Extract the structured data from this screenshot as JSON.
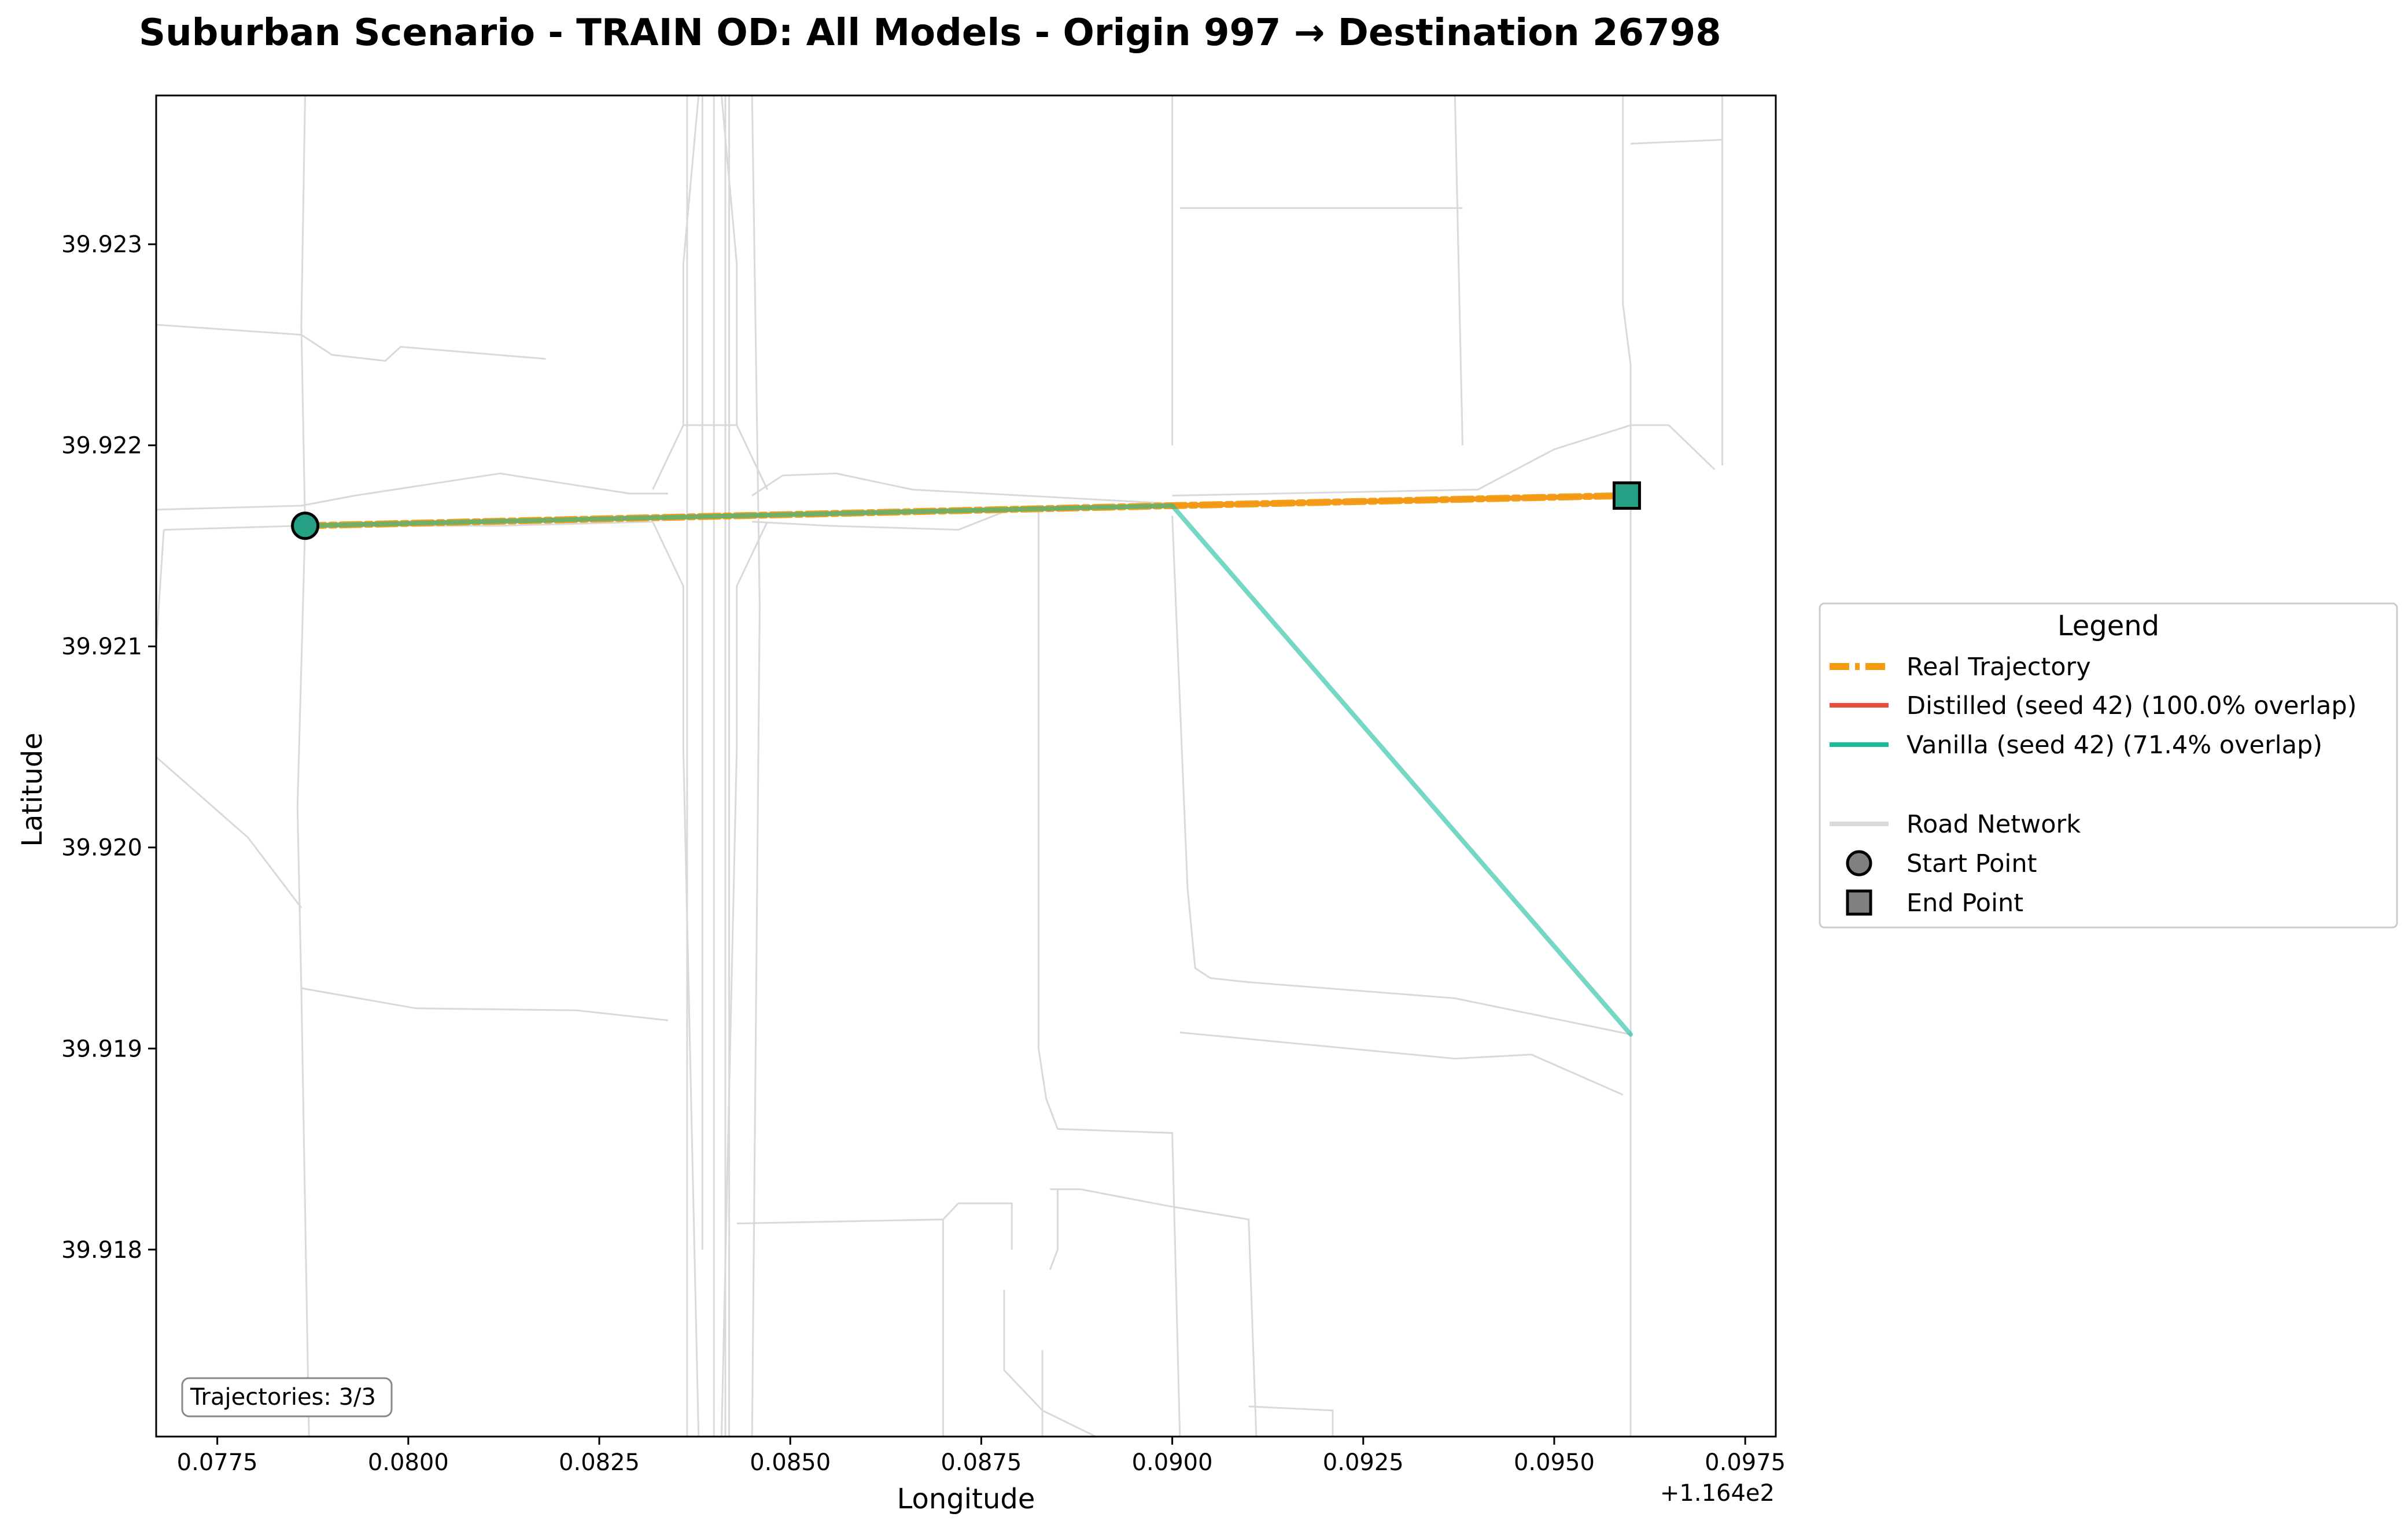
{
  "chart_data": {
    "type": "line",
    "title": "Suburban Scenario - TRAIN OD: All Models - Origin 997 → Destination 26798",
    "xlabel": "Longitude",
    "ylabel": "Latitude",
    "x_offset_label": "+1.164e2",
    "xlim": [
      0.0767,
      0.0979
    ],
    "ylim": [
      39.91707,
      39.92374
    ],
    "x_ticks": [
      0.0775,
      0.08,
      0.0825,
      0.085,
      0.0875,
      0.09,
      0.0925,
      0.095,
      0.0975
    ],
    "x_tick_labels": [
      "0.0775",
      "0.0800",
      "0.0825",
      "0.0850",
      "0.0875",
      "0.0900",
      "0.0925",
      "0.0950",
      "0.0975"
    ],
    "y_ticks": [
      39.918,
      39.919,
      39.92,
      39.921,
      39.922,
      39.923
    ],
    "y_tick_labels": [
      "39.918",
      "39.919",
      "39.920",
      "39.921",
      "39.922",
      "39.923"
    ],
    "grid": false,
    "legend_position": "right",
    "legend_title": "Legend",
    "series": [
      {
        "name": "Real Trajectory",
        "style": "dashed",
        "color": "#f39c12",
        "x": [
          0.07865,
          0.09,
          0.09595
        ],
        "y": [
          39.9216,
          39.9217,
          39.92175
        ]
      },
      {
        "name": "Distilled (seed 42) (100.0% overlap)",
        "style": "solid",
        "color": "#e74c3c",
        "x": [
          0.07865,
          0.09,
          0.09595
        ],
        "y": [
          39.9216,
          39.9217,
          39.92175
        ]
      },
      {
        "name": "Vanilla (seed 42) (71.4% overlap)",
        "style": "solid",
        "color": "#1abc9c",
        "x": [
          0.07865,
          0.09,
          0.096
        ],
        "y": [
          39.9216,
          39.9217,
          39.91907
        ]
      }
    ],
    "start_point": {
      "name": "Start Point",
      "x": 0.07865,
      "y": 39.9216,
      "marker": "circle",
      "color": "#26a085"
    },
    "end_point": {
      "name": "End Point",
      "x": 0.09595,
      "y": 39.92175,
      "marker": "square",
      "color": "#26a085"
    },
    "road_network_label": "Road Network",
    "road_network_color": "#d9d9d9",
    "road_network": [
      [
        [
          0.0767,
          39.9226
        ],
        [
          0.0786,
          39.92255
        ],
        [
          0.079,
          39.92245
        ],
        [
          0.0797,
          39.92242
        ],
        [
          0.0799,
          39.92249
        ],
        [
          0.0818,
          39.92243
        ]
      ],
      [
        [
          0.0767,
          39.92168
        ],
        [
          0.0786,
          39.9217
        ],
        [
          0.0793,
          39.92175
        ],
        [
          0.0812,
          39.92186
        ],
        [
          0.0829,
          39.92176
        ],
        [
          0.0834,
          39.92176
        ]
      ],
      [
        [
          0.0768,
          39.92158
        ],
        [
          0.0786,
          39.9216
        ],
        [
          0.0812,
          39.9216
        ],
        [
          0.0832,
          39.92162
        ]
      ],
      [
        [
          0.0845,
          39.92175
        ],
        [
          0.0849,
          39.92185
        ],
        [
          0.0856,
          39.92186
        ],
        [
          0.0866,
          39.92178
        ],
        [
          0.09,
          39.92171
        ]
      ],
      [
        [
          0.0845,
          39.92162
        ],
        [
          0.0855,
          39.9216
        ],
        [
          0.0872,
          39.92158
        ],
        [
          0.088,
          39.9217
        ]
      ],
      [
        [
          0.09,
          39.92175
        ],
        [
          0.094,
          39.92178
        ],
        [
          0.095,
          39.92198
        ],
        [
          0.096,
          39.9221
        ],
        [
          0.0965,
          39.9221
        ],
        [
          0.0971,
          39.92188
        ]
      ],
      [
        [
          0.0767,
          39.92045
        ],
        [
          0.0779,
          39.92005
        ],
        [
          0.0786,
          39.9197
        ]
      ],
      [
        [
          0.0786,
          39.9193
        ],
        [
          0.0801,
          39.9192
        ],
        [
          0.0822,
          39.91919
        ],
        [
          0.0834,
          39.91914
        ]
      ],
      [
        [
          0.07865,
          39.92374
        ],
        [
          0.0786,
          39.9226
        ],
        [
          0.07865,
          39.9216
        ],
        [
          0.07855,
          39.9202
        ],
        [
          0.0786,
          39.9193
        ],
        [
          0.0787,
          39.91707
        ]
      ],
      [
        [
          0.0768,
          39.92158
        ],
        [
          0.0767,
          39.921
        ]
      ],
      [
        [
          0.0832,
          39.92178
        ],
        [
          0.0836,
          39.9221
        ],
        [
          0.0836,
          39.9229
        ],
        [
          0.0838,
          39.92374
        ]
      ],
      [
        [
          0.0841,
          39.92374
        ],
        [
          0.0843,
          39.9229
        ],
        [
          0.0843,
          39.9221
        ],
        [
          0.0847,
          39.92178
        ]
      ],
      [
        [
          0.0836,
          39.9221
        ],
        [
          0.0843,
          39.9221
        ]
      ],
      [
        [
          0.0832,
          39.92162
        ],
        [
          0.0836,
          39.9213
        ],
        [
          0.0836,
          39.9205
        ],
        [
          0.0838,
          39.91707
        ]
      ],
      [
        [
          0.0847,
          39.92162
        ],
        [
          0.0843,
          39.9213
        ],
        [
          0.0843,
          39.9205
        ],
        [
          0.0841,
          39.91707
        ]
      ],
      [
        [
          0.08365,
          39.92374
        ],
        [
          0.08365,
          39.91707
        ]
      ],
      [
        [
          0.08385,
          39.92374
        ],
        [
          0.08385,
          39.918
        ]
      ],
      [
        [
          0.084,
          39.92374
        ],
        [
          0.084,
          39.91707
        ]
      ],
      [
        [
          0.08415,
          39.92374
        ],
        [
          0.08415,
          39.91707
        ]
      ],
      [
        [
          0.0842,
          39.92374
        ],
        [
          0.0842,
          39.91707
        ]
      ],
      [
        [
          0.0845,
          39.92374
        ],
        [
          0.0846,
          39.9212
        ],
        [
          0.0845,
          39.91707
        ]
      ],
      [
        [
          0.0843,
          39.91813
        ],
        [
          0.087,
          39.91815
        ],
        [
          0.087,
          39.91707
        ]
      ],
      [
        [
          0.087,
          39.91815
        ],
        [
          0.0872,
          39.91823
        ],
        [
          0.0879,
          39.91823
        ],
        [
          0.0879,
          39.918
        ]
      ],
      [
        [
          0.08825,
          39.9217
        ],
        [
          0.08825,
          39.919
        ],
        [
          0.08835,
          39.91875
        ],
        [
          0.0885,
          39.9186
        ],
        [
          0.09,
          39.91858
        ],
        [
          0.0901,
          39.91707
        ]
      ],
      [
        [
          0.0885,
          39.9183
        ],
        [
          0.0885,
          39.918
        ],
        [
          0.0884,
          39.9179
        ]
      ],
      [
        [
          0.0884,
          39.9183
        ],
        [
          0.0888,
          39.9183
        ],
        [
          0.0899,
          39.91822
        ],
        [
          0.091,
          39.91815
        ],
        [
          0.0911,
          39.91707
        ]
      ],
      [
        [
          0.0878,
          39.9178
        ],
        [
          0.0878,
          39.9174
        ],
        [
          0.0883,
          39.9172
        ],
        [
          0.089,
          39.91707
        ]
      ],
      [
        [
          0.0883,
          39.91707
        ],
        [
          0.0883,
          39.9175
        ]
      ],
      [
        [
          0.091,
          39.91722
        ],
        [
          0.0921,
          39.9172
        ],
        [
          0.0921,
          39.91707
        ]
      ],
      [
        [
          0.09,
          39.92374
        ],
        [
          0.09,
          39.922
        ]
      ],
      [
        [
          0.09,
          39.92165
        ],
        [
          0.0902,
          39.9198
        ],
        [
          0.0903,
          39.9194
        ],
        [
          0.0905,
          39.91935
        ],
        [
          0.091,
          39.91933
        ],
        [
          0.0937,
          39.91925
        ],
        [
          0.096,
          39.91907
        ]
      ],
      [
        [
          0.0901,
          39.91908
        ],
        [
          0.0937,
          39.91895
        ],
        [
          0.0947,
          39.91897
        ],
        [
          0.0959,
          39.91877
        ]
      ],
      [
        [
          0.0901,
          39.92318
        ],
        [
          0.0938,
          39.92318
        ]
      ],
      [
        [
          0.0937,
          39.92374
        ],
        [
          0.0938,
          39.922
        ]
      ],
      [
        [
          0.0959,
          39.92374
        ],
        [
          0.0959,
          39.9227
        ],
        [
          0.096,
          39.9224
        ],
        [
          0.096,
          39.91707
        ]
      ],
      [
        [
          0.096,
          39.9235
        ],
        [
          0.0972,
          39.92352
        ]
      ],
      [
        [
          0.0972,
          39.92374
        ],
        [
          0.0972,
          39.9219
        ]
      ]
    ]
  },
  "annotation": "Trajectories: 3/3"
}
